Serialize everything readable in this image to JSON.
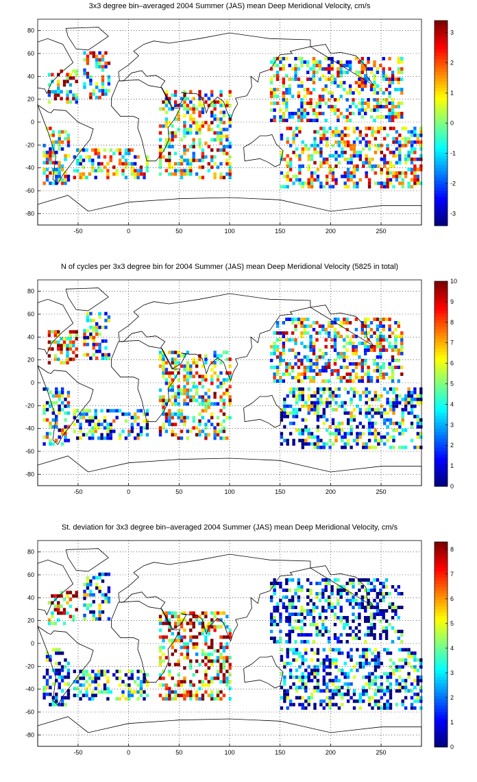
{
  "chart_data": [
    {
      "type": "heatmap",
      "title": "3x3 degree bin–averaged 2004 Summer (JAS) mean Deep Meridional Velocity, cm/s",
      "xlim": [
        -90,
        290
      ],
      "ylim": [
        -90,
        90
      ],
      "x_ticks": [
        -50,
        0,
        50,
        100,
        150,
        200,
        250
      ],
      "y_ticks": [
        80,
        60,
        40,
        20,
        0,
        -20,
        -40,
        -60,
        -80
      ],
      "grid": "dotted",
      "colormap": "jet",
      "colorbar": {
        "range": [
          -3.4,
          3.4
        ],
        "ticks": [
          3,
          2,
          1,
          0,
          -1,
          -2,
          -3
        ]
      },
      "regions": [
        {
          "lon": [
            -80,
            -52
          ],
          "lat": [
            16,
            46
          ],
          "level": 0.6
        },
        {
          "lon": [
            -45,
            -20
          ],
          "lat": [
            20,
            60
          ],
          "level": 0.55
        },
        {
          "lon": [
            -85,
            -60
          ],
          "lat": [
            -55,
            -5
          ],
          "level": 0.5
        },
        {
          "lon": [
            -55,
            20
          ],
          "lat": [
            -50,
            -25
          ],
          "level": 0.5
        },
        {
          "lon": [
            30,
            100
          ],
          "lat": [
            -50,
            28
          ],
          "level": 0.6
        },
        {
          "lon": [
            150,
            290
          ],
          "lat": [
            -58,
            -5
          ],
          "level": 0.55
        },
        {
          "lon": [
            140,
            270
          ],
          "lat": [
            0,
            55
          ],
          "level": 0.5
        }
      ]
    },
    {
      "type": "heatmap",
      "title": "N of cycles per 3x3 degree bin for 2004 Summer (JAS) mean Deep Meridional Velocity (5825 in total)",
      "xlim": [
        -90,
        290
      ],
      "ylim": [
        -90,
        90
      ],
      "x_ticks": [
        -50,
        0,
        50,
        100,
        150,
        200,
        250
      ],
      "y_ticks": [
        80,
        60,
        40,
        20,
        0,
        -20,
        -40,
        -60,
        -80
      ],
      "grid": "dotted",
      "colormap": "jet",
      "colorbar": {
        "range": [
          0,
          10
        ],
        "ticks": [
          10,
          9,
          8,
          7,
          6,
          5,
          4,
          3,
          2,
          1,
          0
        ]
      },
      "regions": [
        {
          "lon": [
            -80,
            -52
          ],
          "lat": [
            16,
            46
          ],
          "level": 0.75
        },
        {
          "lon": [
            -45,
            -20
          ],
          "lat": [
            20,
            60
          ],
          "level": 0.4
        },
        {
          "lon": [
            -85,
            -60
          ],
          "lat": [
            -55,
            -5
          ],
          "level": 0.4
        },
        {
          "lon": [
            -55,
            20
          ],
          "lat": [
            -50,
            -25
          ],
          "level": 0.35
        },
        {
          "lon": [
            30,
            100
          ],
          "lat": [
            -50,
            28
          ],
          "level": 0.6
        },
        {
          "lon": [
            150,
            290
          ],
          "lat": [
            -58,
            -5
          ],
          "level": 0.3
        },
        {
          "lon": [
            140,
            270
          ],
          "lat": [
            0,
            55
          ],
          "level": 0.55
        }
      ]
    },
    {
      "type": "heatmap",
      "title": "St. deviation for 3x3 degree bin–averaged 2004 Summer (JAS) mean Deep Meridional Velocity, cm/s",
      "xlim": [
        -90,
        290
      ],
      "ylim": [
        -90,
        90
      ],
      "x_ticks": [
        -50,
        0,
        50,
        100,
        150,
        200,
        250
      ],
      "y_ticks": [
        80,
        60,
        40,
        20,
        0,
        -20,
        -40,
        -60,
        -80
      ],
      "grid": "dotted",
      "colormap": "jet",
      "colorbar": {
        "range": [
          0,
          8.3
        ],
        "ticks": [
          8,
          7,
          6,
          5,
          4,
          3,
          2,
          1,
          0
        ]
      },
      "regions": [
        {
          "lon": [
            -80,
            -52
          ],
          "lat": [
            16,
            46
          ],
          "level": 0.8
        },
        {
          "lon": [
            -45,
            -20
          ],
          "lat": [
            20,
            60
          ],
          "level": 0.3
        },
        {
          "lon": [
            -85,
            -60
          ],
          "lat": [
            -55,
            -5
          ],
          "level": 0.2
        },
        {
          "lon": [
            -55,
            20
          ],
          "lat": [
            -50,
            -25
          ],
          "level": 0.25
        },
        {
          "lon": [
            30,
            100
          ],
          "lat": [
            -50,
            28
          ],
          "level": 0.7
        },
        {
          "lon": [
            150,
            290
          ],
          "lat": [
            -58,
            -5
          ],
          "level": 0.2
        },
        {
          "lon": [
            140,
            270
          ],
          "lat": [
            0,
            55
          ],
          "level": 0.15
        }
      ]
    }
  ]
}
